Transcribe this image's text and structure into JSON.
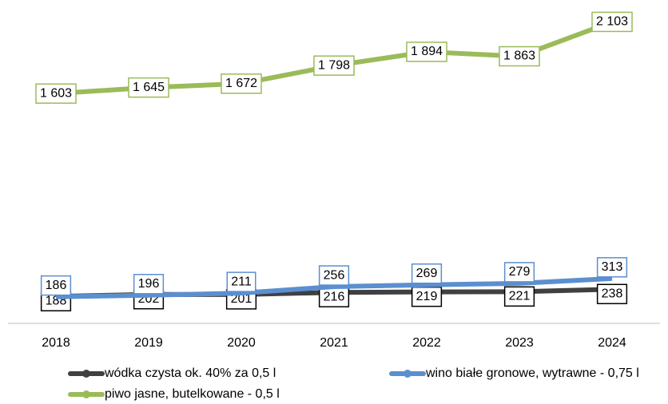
{
  "chart_data": {
    "type": "line",
    "categories": [
      "2018",
      "2019",
      "2020",
      "2021",
      "2022",
      "2023",
      "2024"
    ],
    "ylim": [
      0,
      2200
    ],
    "legend": "bottom",
    "series": [
      {
        "name": "wódka czysta ok. 40% za 0,5 l",
        "color": "#404040",
        "values": [
          188,
          202,
          201,
          216,
          219,
          221,
          238
        ],
        "value_labels": [
          "188",
          "202",
          "201",
          "216",
          "219",
          "221",
          "238"
        ]
      },
      {
        "name": "wino białe gronowe, wytrawne - 0,75 l",
        "color": "#5b8fd0",
        "values": [
          186,
          196,
          211,
          256,
          269,
          279,
          313
        ],
        "value_labels": [
          "186",
          "196",
          "211",
          "256",
          "269",
          "279",
          "313"
        ]
      },
      {
        "name": "piwo jasne, butelkowane - 0,5 l",
        "color": "#9bbb59",
        "values": [
          1603,
          1645,
          1672,
          1798,
          1894,
          1863,
          2103
        ],
        "value_labels": [
          "1 603",
          "1 645",
          "1 672",
          "1 798",
          "1 894",
          "1 863",
          "2 103"
        ]
      }
    ]
  }
}
